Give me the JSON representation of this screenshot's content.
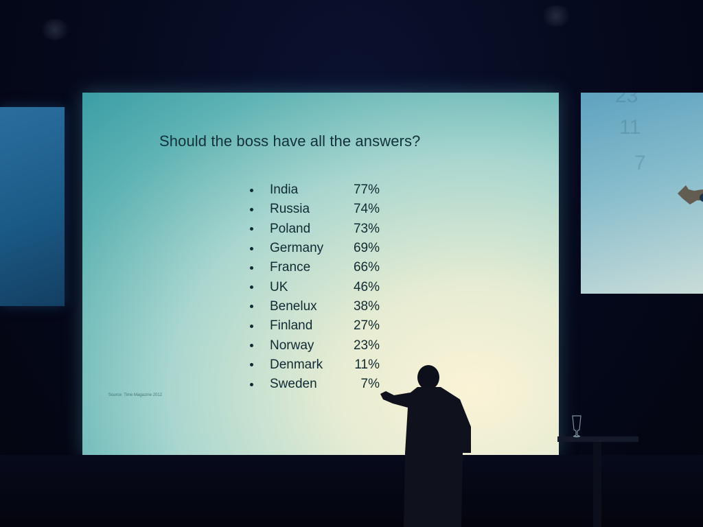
{
  "slide": {
    "title": "Should the boss have all the answers?",
    "source": "Source: Time Magazine 2012",
    "items": [
      {
        "country": "India",
        "value": "77%"
      },
      {
        "country": "Russia",
        "value": "74%"
      },
      {
        "country": "Poland",
        "value": "73%"
      },
      {
        "country": "Germany",
        "value": "69%"
      },
      {
        "country": "France",
        "value": "66%"
      },
      {
        "country": "UK",
        "value": "46%"
      },
      {
        "country": "Benelux",
        "value": "38%"
      },
      {
        "country": "Finland",
        "value": "27%"
      },
      {
        "country": "Norway",
        "value": "23%"
      },
      {
        "country": "Denmark",
        "value": "11%"
      },
      {
        "country": "Sweden",
        "value": "7%"
      }
    ]
  },
  "right_screen": {
    "numbers": [
      "23",
      "11",
      "7"
    ]
  },
  "colors": {
    "slide_text": "#102a33",
    "screen_glow": "#5fb3b4",
    "room": "#05081a"
  }
}
